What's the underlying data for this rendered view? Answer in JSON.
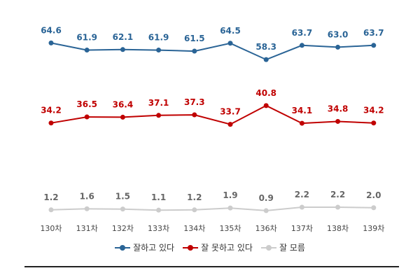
{
  "chart_data": {
    "type": "line",
    "title": "",
    "xlabel": "",
    "ylabel": "",
    "ylim": [
      0,
      70
    ],
    "grid": false,
    "legend_position": "bottom",
    "categories": [
      "130차",
      "131차",
      "132차",
      "133차",
      "134차",
      "135차",
      "136차",
      "137차",
      "138차",
      "139차"
    ],
    "series": [
      {
        "name": "잘하고 있다",
        "color": "#2a6496",
        "values": [
          64.6,
          61.9,
          62.1,
          61.9,
          61.5,
          64.5,
          58.3,
          63.7,
          63.0,
          63.7
        ],
        "value_labels": [
          "64.6",
          "61.9",
          "62.1",
          "61.9",
          "61.5",
          "64.5",
          "58.3",
          "63.7",
          "63.0",
          "63.7"
        ]
      },
      {
        "name": "잘 못하고 있다",
        "color": "#c00000",
        "values": [
          34.2,
          36.5,
          36.4,
          37.1,
          37.3,
          33.7,
          40.8,
          34.1,
          34.8,
          34.2
        ],
        "value_labels": [
          "34.2",
          "36.5",
          "36.4",
          "37.1",
          "37.3",
          "33.7",
          "40.8",
          "34.1",
          "34.8",
          "34.2"
        ]
      },
      {
        "name": "잘 모름",
        "color": "#cccccc",
        "label_color": "#666666",
        "values": [
          1.2,
          1.6,
          1.5,
          1.1,
          1.2,
          1.9,
          0.9,
          2.2,
          2.2,
          2.0
        ],
        "value_labels": [
          "1.2",
          "1.6",
          "1.5",
          "1.1",
          "1.2",
          "1.9",
          "0.9",
          "2.2",
          "2.2",
          "2.0"
        ]
      }
    ]
  }
}
